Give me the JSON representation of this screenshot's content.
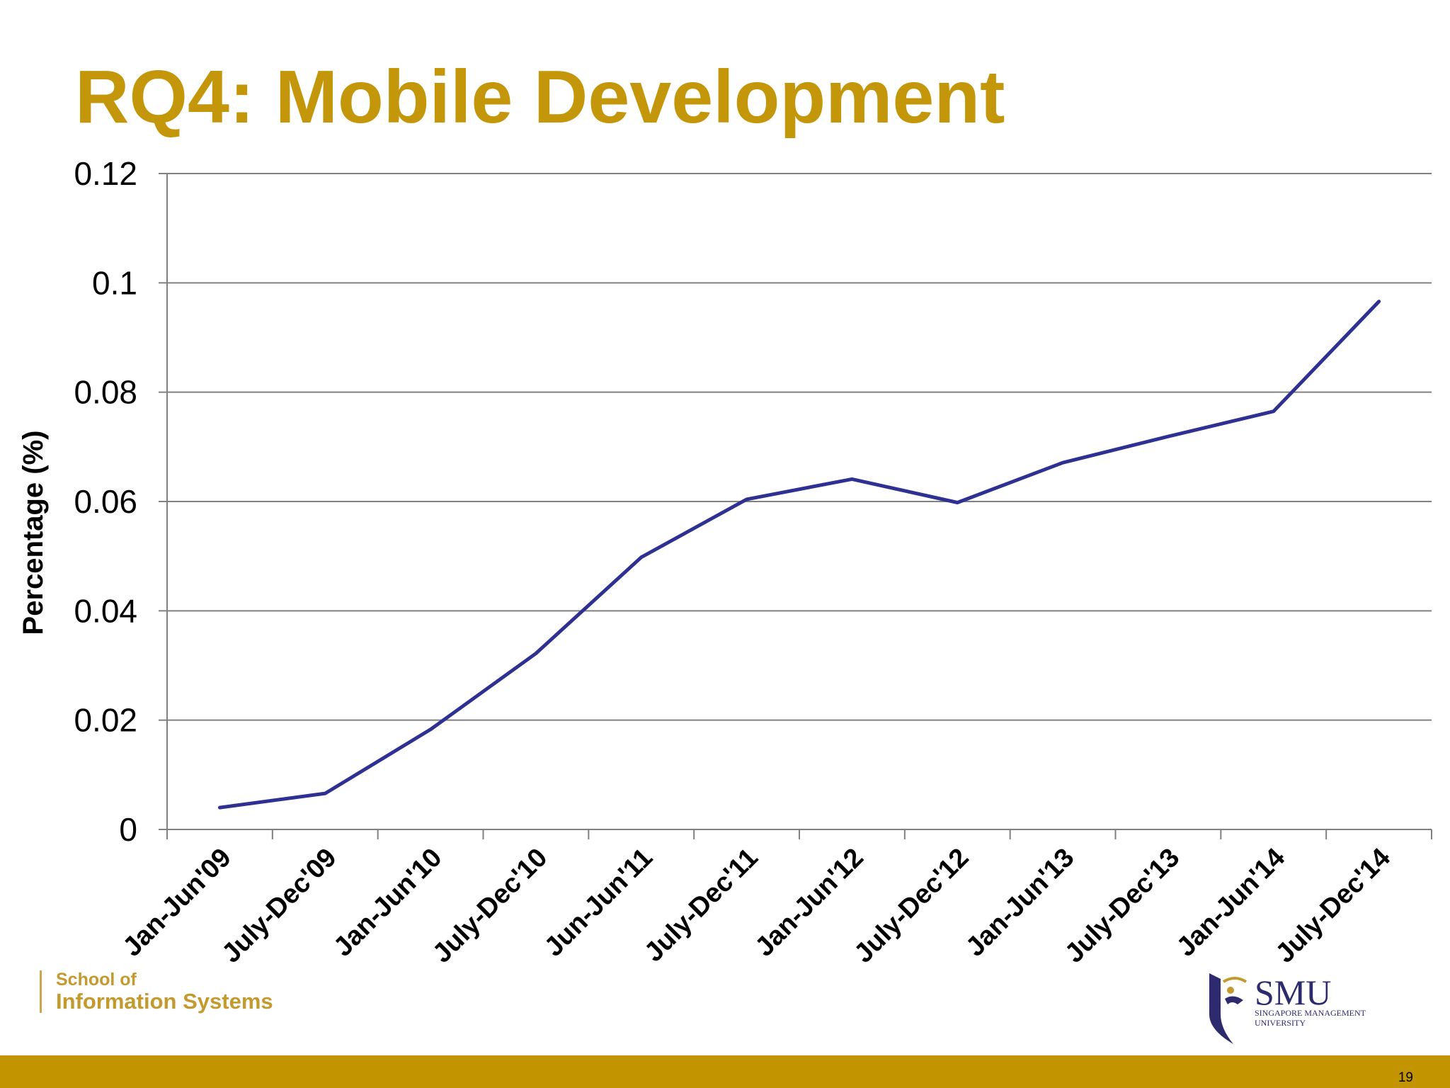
{
  "slide": {
    "title": "RQ4: Mobile Development",
    "page_number": "19"
  },
  "colors": {
    "title": "#c4960a",
    "line": "#2e3192",
    "footer_bar": "#c29400",
    "grid": "#808080"
  },
  "logos": {
    "school_line1": "School of",
    "school_line2": "Information Systems",
    "smu": "SMU",
    "smu_sub_line1": "SINGAPORE MANAGEMENT",
    "smu_sub_line2": "UNIVERSITY"
  },
  "chart_data": {
    "type": "line",
    "title": "",
    "xlabel": "",
    "ylabel": "Percentage (%)",
    "ylim": [
      0,
      0.12
    ],
    "yticks": [
      0,
      0.02,
      0.04,
      0.06,
      0.08,
      0.1,
      0.12
    ],
    "ytick_labels": [
      "0",
      "0.02",
      "0.04",
      "0.06",
      "0.08",
      "0.1",
      "0.12"
    ],
    "grid": true,
    "legend": "none",
    "categories": [
      "Jan-Jun'09",
      "July-Dec'09",
      "Jan-Jun'10",
      "July-Dec'10",
      "Jun-Jun'11",
      "July-Dec'11",
      "Jan-Jun'12",
      "July-Dec'12",
      "Jan-Jun'13",
      "July-Dec'13",
      "Jan-Jun'14",
      "July-Dec'14"
    ],
    "series": [
      {
        "values": [
          0.004,
          0.0066,
          0.0183,
          0.0322,
          0.0498,
          0.0604,
          0.0641,
          0.0598,
          0.0671,
          0.0719,
          0.0765,
          0.0966
        ]
      }
    ]
  }
}
